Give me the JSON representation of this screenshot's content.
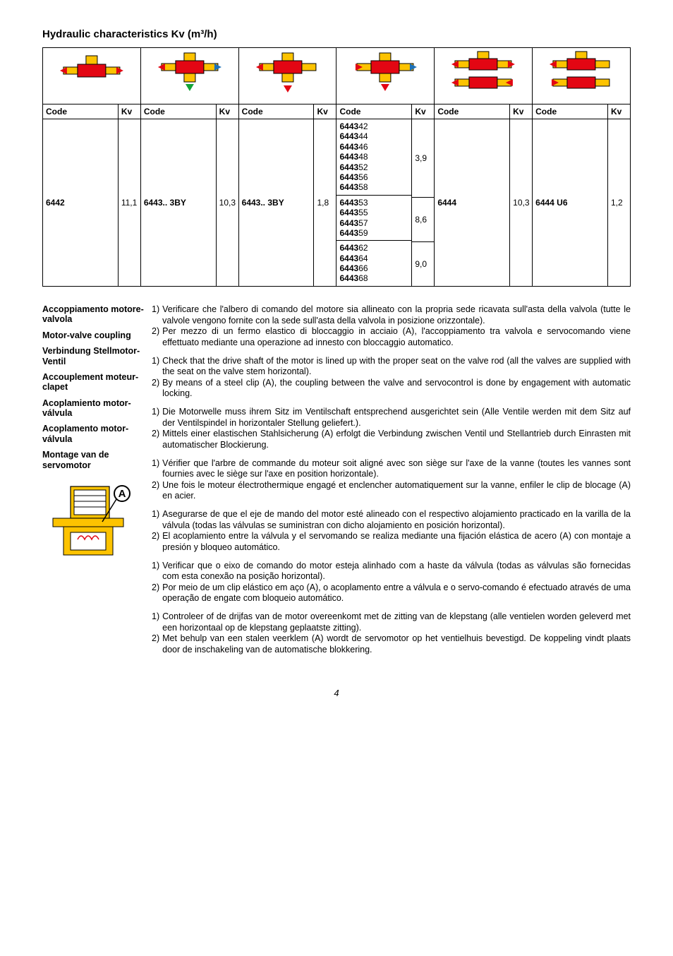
{
  "title": "Hydraulic characteristics Kv (m³/h)",
  "table": {
    "header_code": "Code",
    "header_kv": "Kv",
    "columns": [
      {
        "code": "6442",
        "kv": "11,1"
      },
      {
        "code": "6443.. 3BY",
        "kv": "10,3"
      },
      {
        "code": "6443.. 3BY",
        "kv": "1,8"
      },
      {
        "groups": [
          {
            "codes": [
              "644342",
              "644344",
              "644346",
              "644348",
              "644352",
              "644356",
              "644358"
            ],
            "kv": "3,9"
          },
          {
            "codes": [
              "644353",
              "644355",
              "644357",
              "644359"
            ],
            "kv": "8,6"
          },
          {
            "codes": [
              "644362",
              "644364",
              "644366",
              "644368"
            ],
            "kv": "9,0"
          }
        ]
      },
      {
        "code": "6444",
        "kv": "10,3"
      },
      {
        "code": "6444 U6",
        "kv": "1,2"
      }
    ]
  },
  "left_headings": [
    "Accoppiamento motore-valvola",
    "Motor-valve coupling",
    "Verbindung Stellmotor-Ventil",
    "Accouplement moteur-clapet",
    "Acoplamiento motor-válvula",
    "Acoplamento motor-válvula",
    "Montage van de servomotor"
  ],
  "diagram_label": "A",
  "instruction_blocks": [
    [
      "Verificare che l'albero di comando del motore sia allineato con la propria sede ricavata sull'asta della valvola (tutte le valvole vengono fornite con la sede sull'asta della valvola in posizione orizzontale).",
      "Per mezzo di un fermo elastico di bloccaggio in acciaio (A), l'accoppiamento tra valvola e servocomando viene effettuato mediante una operazione ad innesto con bloccaggio automatico."
    ],
    [
      "Check that the drive shaft of the motor is lined up with the proper seat on the valve rod (all the valves are supplied with the seat on the valve stem horizontal).",
      "By means of a steel clip (A), the coupling between the valve and servocontrol is done by engagement with automatic locking."
    ],
    [
      "Die Motorwelle muss ihrem Sitz im Ventilschaft entsprechend ausgerichtet sein (Alle Ventile werden mit dem Sitz auf der Ventilspindel in horizontaler Stellung geliefert.).",
      "Mittels einer elastischen Stahlsicherung (A) erfolgt die Verbindung zwischen Ventil und Stellantrieb durch Einrasten mit automatischer Blockierung."
    ],
    [
      "Vérifier que l'arbre de commande du moteur soit aligné avec son siège sur l'axe de la vanne (toutes les vannes sont fournies avec le siège sur l'axe en position horizontale).",
      "Une fois le moteur électrothermique engagé et enclencher automatiquement sur la vanne, enfiler le clip de blocage (A) en acier."
    ],
    [
      "Asegurarse de que el eje de mando del motor esté alineado con el respectivo alojamiento practicado en la varilla de la válvula (todas las válvulas se suministran con dicho alojamiento en posición horizontal).",
      "El acoplamiento entre la válvula y el servomando se realiza mediante una fijación elástica de acero (A) con montaje a presión y bloqueo automático."
    ],
    [
      "Verificar que o eixo de comando do motor esteja alinhado com a haste da válvula (todas as válvulas são fornecidas com esta conexão na posição horizontal).",
      "Por meio de um clip elástico em aço (A), o acoplamento entre a válvula e o servo-comando é efectuado através de uma operação de engate com bloqueio automático."
    ],
    [
      "Controleer of de drijfas van de motor overeenkomt met de zitting van de klepstang (alle ventielen worden geleverd met een horizontaal op de klepstang geplaatste zitting).",
      "Met behulp van een stalen veerklem (A) wordt de servomotor op het ventielhuis bevestigd. De koppeling vindt plaats door de inschakeling van de automatische blokkering."
    ]
  ],
  "page_number": "4",
  "colors": {
    "red": "#e30613",
    "blue": "#1d71b8",
    "yellow": "#fdc300",
    "green": "#13a538",
    "black": "#000000"
  }
}
